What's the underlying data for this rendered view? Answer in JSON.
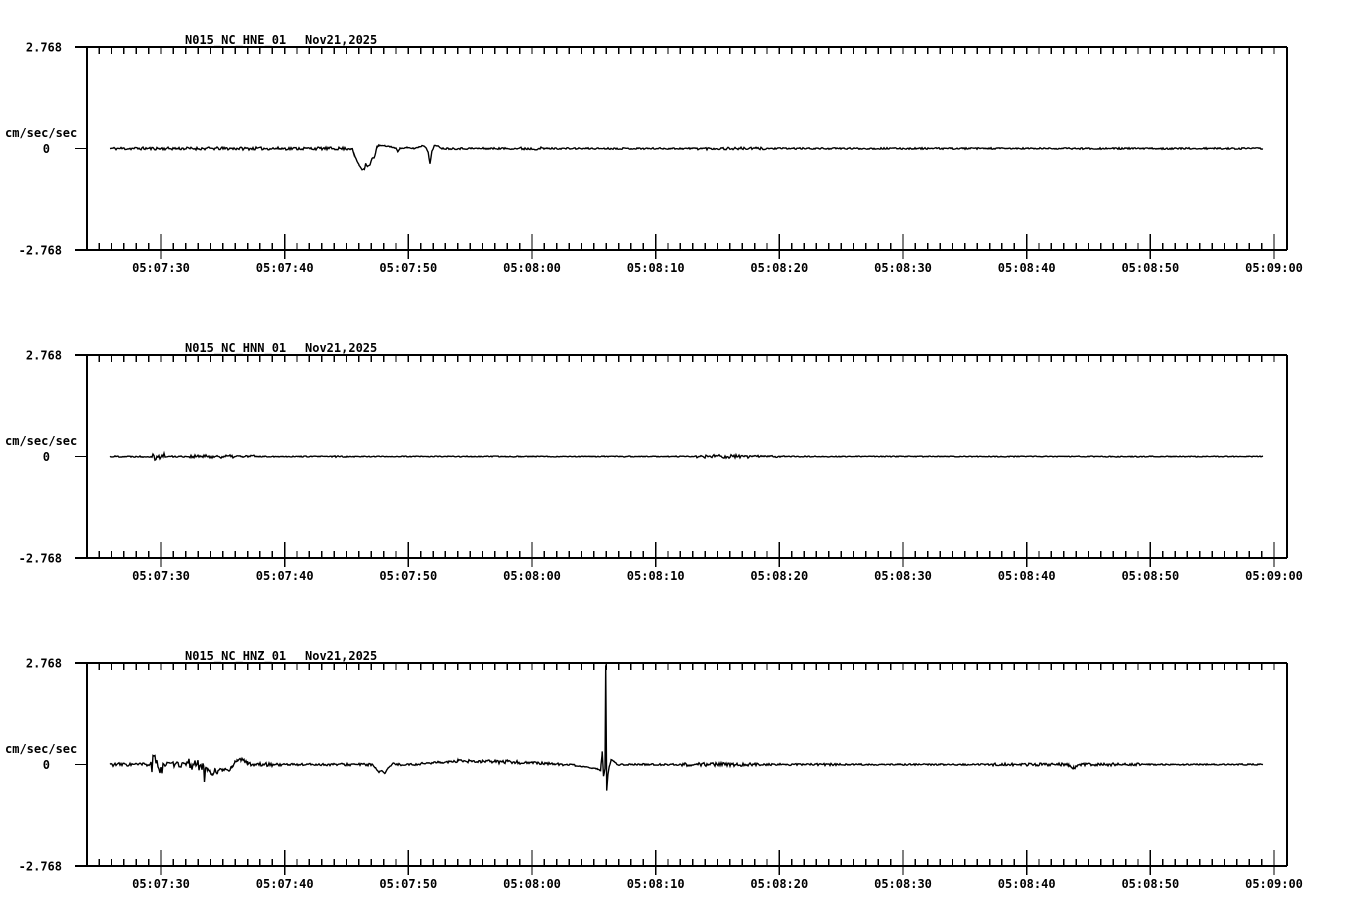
{
  "figure": {
    "background": "#ffffff",
    "foreground": "#000000",
    "kind": "three-channel strong-motion seismogram display"
  },
  "chart_data": [
    {
      "type": "line",
      "title": "N015_NC_HNE_01",
      "date": "Nov21,2025",
      "ylabel": "cm/sec/sec",
      "ylim": [
        -2.768,
        2.768
      ],
      "y_tick_labels": [
        "2.768",
        "0",
        "-2.768"
      ],
      "x_tick_labels": [
        "05:07:30",
        "05:07:40",
        "05:07:50",
        "05:08:00",
        "05:08:10",
        "05:08:20",
        "05:08:30",
        "05:08:40",
        "05:08:50",
        "05:09:00"
      ],
      "x_minor_step_s": 1,
      "x_major_step_s": 10,
      "grid": false,
      "legend": "none",
      "trace": {
        "seed": 11,
        "t_start": -4.15,
        "t_end": 89.15,
        "base_noise_amp": 0.022,
        "noise_segments": [
          {
            "t0": -4.15,
            "t1": 15.3,
            "amp": 0.04
          },
          {
            "t0": 23.0,
            "t1": 29.0,
            "amp": 0.025
          },
          {
            "t0": 29.0,
            "t1": 31.0,
            "amp": 0.04
          },
          {
            "t0": 31.0,
            "t1": 43.0,
            "amp": 0.022
          },
          {
            "t0": 43.0,
            "t1": 49.0,
            "amp": 0.035
          },
          {
            "t0": 49.0,
            "t1": 89.15,
            "amp": 0.022
          }
        ],
        "features": [
          {
            "name": "negative-pulse-and-recovery",
            "points": [
              [
                15.45,
                0
              ],
              [
                15.6,
                -0.16
              ],
              [
                15.75,
                -0.27
              ],
              [
                16.0,
                -0.45
              ],
              [
                16.25,
                -0.57
              ],
              [
                16.45,
                -0.55
              ],
              [
                16.55,
                -0.41
              ],
              [
                16.7,
                -0.49
              ],
              [
                16.9,
                -0.45
              ],
              [
                17.05,
                -0.28
              ],
              [
                17.25,
                -0.25
              ],
              [
                17.35,
                -0.11
              ],
              [
                17.45,
                0.03
              ],
              [
                17.6,
                0.08
              ],
              [
                18.1,
                0.07
              ],
              [
                18.6,
                0.05
              ],
              [
                19.0,
                0.0
              ],
              [
                19.15,
                -0.08
              ],
              [
                19.3,
                0.0
              ],
              [
                19.9,
                0.02
              ],
              [
                20.5,
                0.0
              ],
              [
                20.9,
                0.05
              ],
              [
                21.2,
                0.08
              ],
              [
                21.45,
                0.02
              ],
              [
                21.6,
                -0.1
              ],
              [
                21.75,
                -0.43
              ],
              [
                21.9,
                -0.08
              ],
              [
                22.1,
                0.08
              ],
              [
                22.4,
                0.06
              ],
              [
                22.7,
                0.01
              ]
            ]
          }
        ]
      }
    },
    {
      "type": "line",
      "title": "N015_NC_HNN_01",
      "date": "Nov21,2025",
      "ylabel": "cm/sec/sec",
      "ylim": [
        -2.768,
        2.768
      ],
      "y_tick_labels": [
        "2.768",
        "0",
        "-2.768"
      ],
      "x_tick_labels": [
        "05:07:30",
        "05:07:40",
        "05:07:50",
        "05:08:00",
        "05:08:10",
        "05:08:20",
        "05:08:30",
        "05:08:40",
        "05:08:50",
        "05:09:00"
      ],
      "x_minor_step_s": 1,
      "x_major_step_s": 10,
      "grid": false,
      "legend": "none",
      "trace": {
        "seed": 22,
        "t_start": -4.15,
        "t_end": 89.15,
        "base_noise_amp": 0.013,
        "noise_segments": [
          {
            "t0": -4.15,
            "t1": -0.7,
            "amp": 0.02
          },
          {
            "t0": -0.7,
            "t1": -0.25,
            "amp": 0.11
          },
          {
            "t0": -0.25,
            "t1": -0.1,
            "amp": 0.04
          },
          {
            "t0": -0.1,
            "t1": 0.35,
            "amp": 0.11
          },
          {
            "t0": 0.35,
            "t1": 2.3,
            "amp": 0.02
          },
          {
            "t0": 2.3,
            "t1": 7.6,
            "amp": 0.045
          },
          {
            "t0": 13.6,
            "t1": 15.0,
            "amp": 0.025
          },
          {
            "t0": 43.2,
            "t1": 48.5,
            "amp": 0.05
          },
          {
            "t0": 48.5,
            "t1": 50.5,
            "amp": 0.025
          }
        ],
        "features": []
      }
    },
    {
      "type": "line",
      "title": "N015_NC_HNZ_01",
      "date": "Nov21,2025",
      "ylabel": "cm/sec/sec",
      "ylim": [
        -2.768,
        2.768
      ],
      "y_tick_labels": [
        "2.768",
        "0",
        "-2.768"
      ],
      "x_tick_labels": [
        "05:07:30",
        "05:07:40",
        "05:07:50",
        "05:08:00",
        "05:08:10",
        "05:08:20",
        "05:08:30",
        "05:08:40",
        "05:08:50",
        "05:09:00"
      ],
      "x_minor_step_s": 1,
      "x_major_step_s": 10,
      "grid": false,
      "legend": "none",
      "trace": {
        "seed": 33,
        "t_start": -4.15,
        "t_end": 89.15,
        "base_noise_amp": 0.02,
        "noise_segments": [
          {
            "t0": -4.15,
            "t1": -0.9,
            "amp": 0.05
          },
          {
            "t0": -0.9,
            "t1": -0.75,
            "amp": 0.1
          },
          {
            "t0": -0.75,
            "t1": -0.45,
            "amp": 0.3
          },
          {
            "t0": -0.45,
            "t1": -0.25,
            "amp": 0.15
          },
          {
            "t0": -0.25,
            "t1": 0.15,
            "amp": 0.28
          },
          {
            "t0": 0.15,
            "t1": 0.6,
            "amp": 0.1
          },
          {
            "t0": 0.6,
            "t1": 2.2,
            "amp": 0.07
          },
          {
            "t0": 2.2,
            "t1": 3.45,
            "amp": 0.16
          },
          {
            "t0": 3.6,
            "t1": 7.3,
            "amp": 0.04
          },
          {
            "t0": 7.3,
            "t1": 10.0,
            "amp": 0.05
          },
          {
            "t0": 10.0,
            "t1": 17.0,
            "amp": 0.035
          },
          {
            "t0": 19.2,
            "t1": 24.0,
            "amp": 0.03
          },
          {
            "t0": 24.0,
            "t1": 29.5,
            "amp": 0.05
          },
          {
            "t0": 29.5,
            "t1": 33.5,
            "amp": 0.035
          },
          {
            "t0": 36.8,
            "t1": 42.0,
            "amp": 0.025
          },
          {
            "t0": 42.0,
            "t1": 48.4,
            "amp": 0.05
          },
          {
            "t0": 48.4,
            "t1": 55.0,
            "amp": 0.03
          },
          {
            "t0": 66.9,
            "t1": 69.0,
            "amp": 0.035
          },
          {
            "t0": 69.5,
            "t1": 79.2,
            "amp": 0.04
          },
          {
            "t0": 79.2,
            "t1": 89.15,
            "amp": 0.018
          }
        ],
        "features": [
          {
            "name": "early-wave-train",
            "points": [
              [
                3.45,
                -0.05
              ],
              [
                3.52,
                -0.49
              ],
              [
                3.6,
                -0.1
              ],
              [
                3.75,
                -0.14
              ],
              [
                3.95,
                -0.2
              ],
              [
                4.15,
                -0.27
              ],
              [
                4.35,
                -0.15
              ],
              [
                4.55,
                -0.23
              ],
              [
                4.75,
                -0.1
              ],
              [
                4.95,
                -0.18
              ],
              [
                5.2,
                -0.12
              ],
              [
                5.5,
                -0.16
              ],
              [
                5.75,
                -0.06
              ],
              [
                5.95,
                0.05
              ],
              [
                6.15,
                0.12
              ],
              [
                6.45,
                0.14
              ],
              [
                6.75,
                0.1
              ],
              [
                7.0,
                0.05
              ],
              [
                7.2,
                0.02
              ]
            ]
          },
          {
            "name": "mid-dip",
            "points": [
              [
                17.1,
                -0.01
              ],
              [
                17.35,
                -0.1
              ],
              [
                17.6,
                -0.22
              ],
              [
                17.85,
                -0.16
              ],
              [
                18.1,
                -0.24
              ],
              [
                18.35,
                -0.1
              ],
              [
                18.6,
                -0.04
              ],
              [
                18.8,
                0.04
              ],
              [
                19.0,
                0.02
              ]
            ]
          },
          {
            "name": "broad-rise-then-droop",
            "points": [
              [
                20.9,
                0.02
              ],
              [
                22.5,
                0.06
              ],
              [
                24.0,
                0.08
              ],
              [
                26.0,
                0.08
              ],
              [
                28.0,
                0.07
              ],
              [
                29.5,
                0.05
              ],
              [
                31.0,
                0.03
              ],
              [
                32.5,
                0.0
              ],
              [
                33.5,
                -0.03
              ],
              [
                34.5,
                -0.08
              ],
              [
                35.3,
                -0.12
              ],
              [
                35.55,
                -0.16
              ]
            ]
          },
          {
            "name": "large-spike",
            "points": [
              [
                35.58,
                -0.2
              ],
              [
                35.68,
                0.35
              ],
              [
                35.78,
                -0.33
              ],
              [
                35.9,
                -0.12
              ],
              [
                35.96,
                2.69
              ],
              [
                36.04,
                -0.7
              ],
              [
                36.14,
                -0.28
              ],
              [
                36.25,
                -0.05
              ],
              [
                36.4,
                0.12
              ],
              [
                36.6,
                0.09
              ],
              [
                36.8,
                0.05
              ]
            ]
          },
          {
            "name": "late-small-dip",
            "points": [
              [
                73.4,
                -0.01
              ],
              [
                73.8,
                -0.1
              ],
              [
                74.2,
                -0.02
              ]
            ]
          }
        ]
      }
    }
  ]
}
